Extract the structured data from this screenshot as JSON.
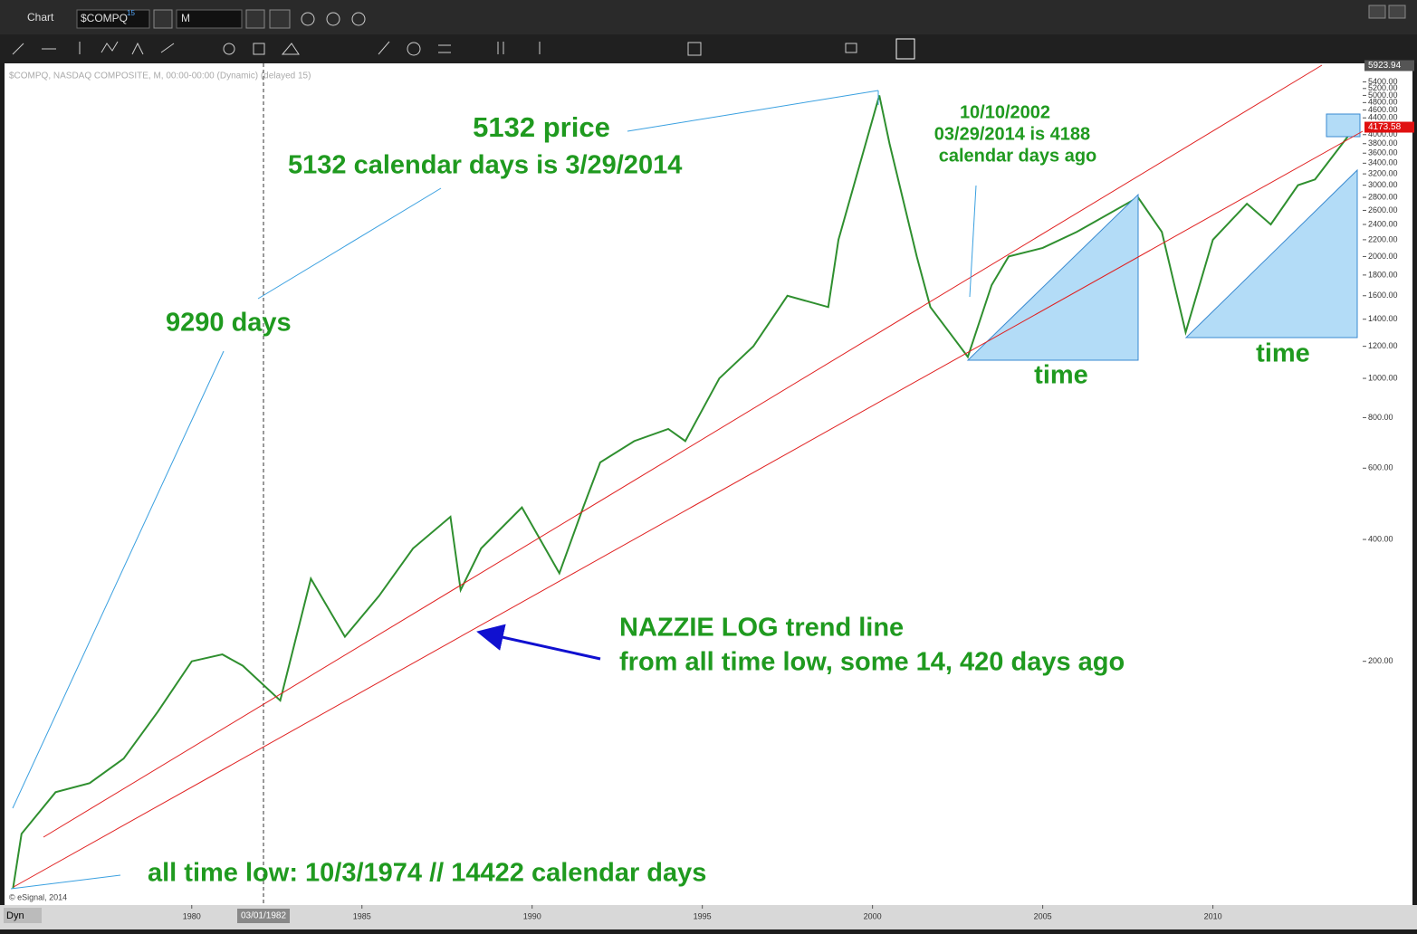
{
  "ui": {
    "window_title": "Chart",
    "symbol": "$COMPQ",
    "symbol_badge": "15",
    "interval": "M",
    "info_line": "$COMPQ, NASDAQ COMPOSITE, M, 00:00-00:00 (Dynamic) (delayed 15)",
    "copyright": "© eSignal, 2014",
    "mode": "Dyn",
    "cursor_date": "03/01/1982"
  },
  "chart_data": {
    "type": "line",
    "log_scale": true,
    "color": "#2f8f2f",
    "x": [
      1974.75,
      1975.0,
      1976.0,
      1977.0,
      1978.0,
      1979.0,
      1980.0,
      1980.9,
      1981.5,
      1982.6,
      1983.5,
      1984.5,
      1985.5,
      1986.5,
      1987.6,
      1987.9,
      1988.5,
      1989.7,
      1990.8,
      1991.5,
      1992.0,
      1993.0,
      1994.0,
      1994.5,
      1995.5,
      1996.5,
      1997.5,
      1998.7,
      1999.0,
      2000.2,
      2000.5,
      2001.3,
      2001.7,
      2002.8,
      2003.5,
      2004.0,
      2005.0,
      2006.0,
      2007.8,
      2008.5,
      2009.2,
      2010.0,
      2011.0,
      2011.7,
      2012.5,
      2013.0,
      2014.2
    ],
    "values": [
      55,
      75,
      95,
      100,
      115,
      150,
      200,
      208,
      195,
      160,
      320,
      230,
      290,
      380,
      455,
      300,
      380,
      480,
      330,
      480,
      620,
      700,
      750,
      700,
      1000,
      1200,
      1600,
      1500,
      2200,
      5000,
      3800,
      2000,
      1500,
      1130,
      1700,
      2000,
      2100,
      2300,
      2800,
      2300,
      1300,
      2200,
      2700,
      2400,
      3000,
      3100,
      4200
    ],
    "xlim": [
      1974.5,
      2014.4
    ],
    "xticks": [
      1980,
      1985,
      1990,
      1995,
      2000,
      2005,
      2010
    ],
    "ylim": [
      50,
      6000
    ],
    "yticks": [
      {
        "value": 200,
        "label": "200.00"
      },
      {
        "value": 400,
        "label": "400.00"
      },
      {
        "value": 600,
        "label": "600.00"
      },
      {
        "value": 800,
        "label": "800.00"
      },
      {
        "value": 1000,
        "label": "1000.00"
      },
      {
        "value": 1200,
        "label": "1200.00"
      },
      {
        "value": 1400,
        "label": "1400.00"
      },
      {
        "value": 1600,
        "label": "1600.00"
      },
      {
        "value": 1800,
        "label": "1800.00"
      },
      {
        "value": 2000,
        "label": "2000.00"
      },
      {
        "value": 2200,
        "label": "2200.00"
      },
      {
        "value": 2400,
        "label": "2400.00"
      },
      {
        "value": 2600,
        "label": "2600.00"
      },
      {
        "value": 2800,
        "label": "2800.00"
      },
      {
        "value": 3000,
        "label": "3000.00"
      },
      {
        "value": 3200,
        "label": "3200.00"
      },
      {
        "value": 3400,
        "label": "3400.00"
      },
      {
        "value": 3600,
        "label": "3600.00"
      },
      {
        "value": 3800,
        "label": "3800.00"
      },
      {
        "value": 4000,
        "label": "4000.00"
      },
      {
        "value": 4400,
        "label": "4400.00"
      },
      {
        "value": 4600,
        "label": "4600.00"
      },
      {
        "value": 4800,
        "label": "4800.00"
      },
      {
        "value": 5000,
        "label": "5000.00"
      },
      {
        "value": 5200,
        "label": "5200.00"
      },
      {
        "value": 5400,
        "label": "5400.00"
      }
    ],
    "top_price": 5923.94,
    "last_price": 4173.58,
    "annotations": [
      "5132 price",
      "5132 calendar days is 3/29/2014",
      "9290 days",
      "10/10/2002",
      "03/29/2014 is 4188",
      "calendar days ago",
      "time",
      "time",
      "NAZZIE LOG trend line",
      "from all time low, some 14, 420 days ago",
      "all time low: 10/3/1974 // 14422 calendar days"
    ]
  }
}
